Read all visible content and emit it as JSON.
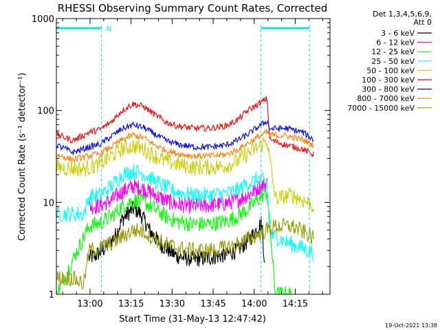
{
  "chart_data": {
    "type": "line",
    "title": "RHESSI Observing Summary Count Rates, Corrected",
    "xlabel": "Start Time (31-May-13 12:47:42)",
    "ylabel": "Corrected Count Rate (s⁻¹ detector⁻¹)",
    "yscale": "log",
    "ylim": [
      1,
      1000
    ],
    "xlim_minutes": [
      0,
      100
    ],
    "x_unit": "minutes after 12:47:42",
    "x_ticks": [
      {
        "label": "13:00",
        "t": 12.3
      },
      {
        "label": "13:15",
        "t": 27.3
      },
      {
        "label": "13:30",
        "t": 42.3
      },
      {
        "label": "13:45",
        "t": 57.3
      },
      {
        "label": "14:00",
        "t": 72.3
      },
      {
        "label": "14:15",
        "t": 87.3
      }
    ],
    "y_ticks": [
      {
        "label": "1",
        "v": 1
      },
      {
        "label": "10",
        "v": 10
      },
      {
        "label": "100",
        "v": 100
      },
      {
        "label": "1000",
        "v": 1000
      }
    ],
    "legend_position": "right",
    "legend_header": [
      "Det 1,3,4,5,6,9,",
      "Att 0"
    ],
    "night_marks": [
      {
        "label": "N",
        "start": 0,
        "end": 16.5
      },
      {
        "label": "",
        "start": 74.8,
        "end": 92.5
      }
    ],
    "series": [
      {
        "name": "3 - 6 keV",
        "color": "#000000",
        "t": [
          12,
          14,
          18,
          22,
          24,
          26,
          28,
          30,
          32,
          34,
          38,
          44,
          50,
          56,
          62,
          66,
          70,
          72,
          74,
          75,
          76
        ],
        "v": [
          2.5,
          2.6,
          3.2,
          4.5,
          6.5,
          7.5,
          8.5,
          8.0,
          6.5,
          5.0,
          3.5,
          2.6,
          2.4,
          2.5,
          2.7,
          3.0,
          3.8,
          4.5,
          5.5,
          6.0,
          2.5
        ]
      },
      {
        "name": "6 - 12 keV",
        "color": "#ff00ff",
        "t": [
          12,
          16,
          20,
          24,
          28,
          32,
          36,
          40,
          44,
          50,
          56,
          62,
          66,
          70,
          74,
          77
        ],
        "v": [
          9.0,
          9.2,
          10.5,
          13.0,
          15.0,
          14.0,
          12.0,
          10.5,
          9.5,
          9.2,
          9.3,
          9.8,
          10.5,
          12.0,
          14.5,
          16.0
        ]
      },
      {
        "name": "12 - 25 keV",
        "color": "#00ff00",
        "t": [
          0,
          12,
          16,
          20,
          24,
          28,
          32,
          36,
          40,
          44,
          50,
          56,
          62,
          66,
          70,
          74,
          77,
          80,
          86
        ],
        "v": [
          1,
          5.5,
          6.0,
          7.0,
          9.0,
          10.5,
          10.0,
          8.5,
          7.0,
          6.2,
          5.8,
          5.8,
          6.2,
          7.0,
          8.5,
          11.0,
          13.0,
          1,
          1
        ]
      },
      {
        "name": "25 - 50 keV",
        "color": "#00ffff",
        "t": [
          0,
          10,
          12,
          16,
          20,
          24,
          28,
          32,
          36,
          40,
          44,
          50,
          56,
          62,
          66,
          70,
          74,
          77,
          78,
          86,
          92,
          94
        ],
        "v": [
          7.5,
          7.5,
          11.5,
          12.0,
          15.0,
          20.0,
          22.0,
          20.5,
          17.0,
          14.5,
          13.0,
          12.0,
          12.0,
          12.5,
          13.5,
          16.0,
          18.0,
          16.0,
          4.5,
          3.5,
          3.0,
          2.8
        ]
      },
      {
        "name": "50 - 100 keV",
        "color": "#cccc00",
        "t": [
          0,
          10,
          12,
          16,
          20,
          24,
          28,
          32,
          36,
          40,
          44,
          50,
          56,
          62,
          66,
          70,
          74,
          77,
          80,
          86,
          92,
          94
        ],
        "v": [
          24,
          23,
          24,
          26,
          32,
          38,
          41,
          38,
          32,
          28,
          26,
          24,
          24,
          25,
          28,
          34,
          40,
          48,
          11,
          12,
          10,
          9
        ]
      },
      {
        "name": "100 - 300 keV",
        "color": "#ff0000",
        "t": [
          0,
          6,
          12,
          16,
          20,
          24,
          28,
          32,
          36,
          40,
          44,
          50,
          56,
          62,
          66,
          70,
          74,
          77,
          78,
          84,
          90,
          94
        ],
        "v": [
          55,
          47,
          58,
          62,
          75,
          100,
          118,
          110,
          90,
          75,
          68,
          64,
          64,
          68,
          78,
          100,
          118,
          135,
          48,
          42,
          38,
          33
        ]
      },
      {
        "name": "300 - 800 keV",
        "color": "#0000ff",
        "t": [
          0,
          6,
          12,
          16,
          20,
          24,
          28,
          32,
          36,
          40,
          44,
          50,
          56,
          62,
          66,
          70,
          74,
          77,
          78,
          84,
          90,
          94
        ],
        "v": [
          42,
          35,
          40,
          43,
          52,
          63,
          70,
          65,
          55,
          47,
          43,
          40,
          40,
          42,
          47,
          55,
          67,
          77,
          63,
          64,
          58,
          48
        ]
      },
      {
        "name": "800 - 7000 keV",
        "color": "#ff8000",
        "t": [
          0,
          6,
          12,
          16,
          20,
          24,
          28,
          32,
          36,
          40,
          44,
          50,
          56,
          62,
          66,
          70,
          74,
          77,
          78,
          84,
          90,
          94
        ],
        "v": [
          33,
          29,
          32,
          34,
          40,
          48,
          54,
          50,
          42,
          37,
          34,
          32,
          32,
          33,
          37,
          44,
          52,
          58,
          54,
          53,
          48,
          42
        ]
      },
      {
        "name": "7000 - 15000 keV",
        "color": "#999900",
        "t": [
          0,
          6,
          10,
          12,
          16,
          20,
          24,
          28,
          32,
          36,
          40,
          44,
          50,
          56,
          62,
          66,
          70,
          74,
          77,
          80,
          86,
          92,
          94
        ],
        "v": [
          1.5,
          1.5,
          1.3,
          3.0,
          3.2,
          3.6,
          4.2,
          5.0,
          4.8,
          4.0,
          3.5,
          3.2,
          3.0,
          3.0,
          3.2,
          3.5,
          4.0,
          4.5,
          5.0,
          5.5,
          5.5,
          4.5,
          4.0
        ]
      }
    ]
  },
  "footer": {
    "date": "19-Oct-2021 13:38"
  }
}
